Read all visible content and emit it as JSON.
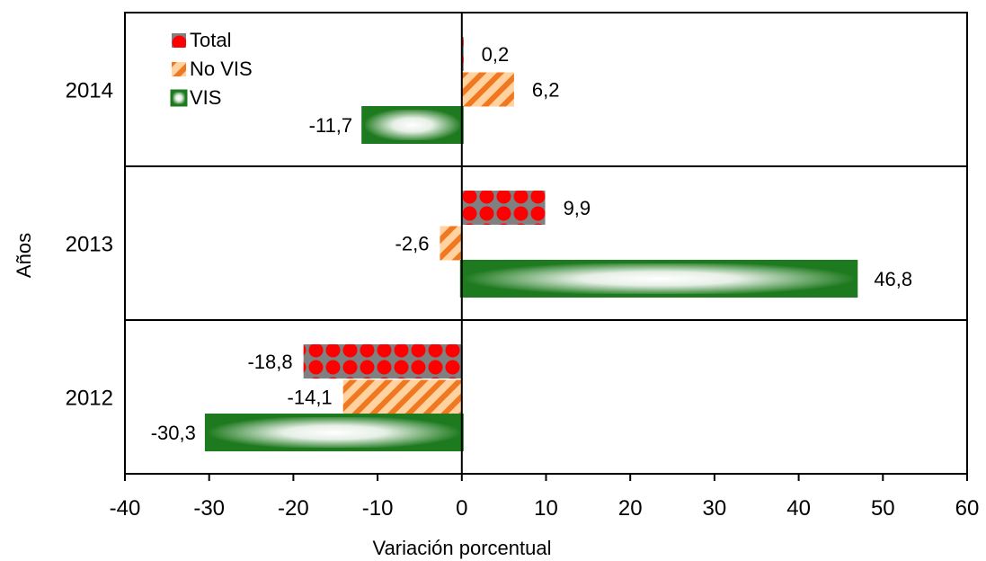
{
  "chart_data": {
    "type": "bar",
    "orientation": "horizontal",
    "categories": [
      "2014",
      "2013",
      "2012"
    ],
    "series": [
      {
        "name": "Total",
        "values": [
          0.2,
          9.9,
          -18.8
        ],
        "labels": [
          "0,2",
          "9,9",
          "-18,8"
        ],
        "color": "#ff0000",
        "accent": "#808080"
      },
      {
        "name": "No VIS",
        "values": [
          6.2,
          -2.6,
          -14.1
        ],
        "labels": [
          "6,2",
          "-2,6",
          "-14,1"
        ],
        "color": "#f07820",
        "accent": "#ffd2a0"
      },
      {
        "name": "VIS",
        "values": [
          -11.7,
          46.8,
          -30.3
        ],
        "labels": [
          "-11,7",
          "46,8",
          "-30,3"
        ],
        "color": "#1e7a1e",
        "accent": "#ffffff"
      }
    ],
    "xlim": [
      -40,
      60
    ],
    "xticks": [
      -40,
      -30,
      -20,
      -10,
      0,
      10,
      20,
      30,
      40,
      50,
      60
    ],
    "xlabel": "Variación porcentual",
    "ylabel": "Años",
    "legend_position": "top-left",
    "grid": "horizontal separators between categories"
  }
}
